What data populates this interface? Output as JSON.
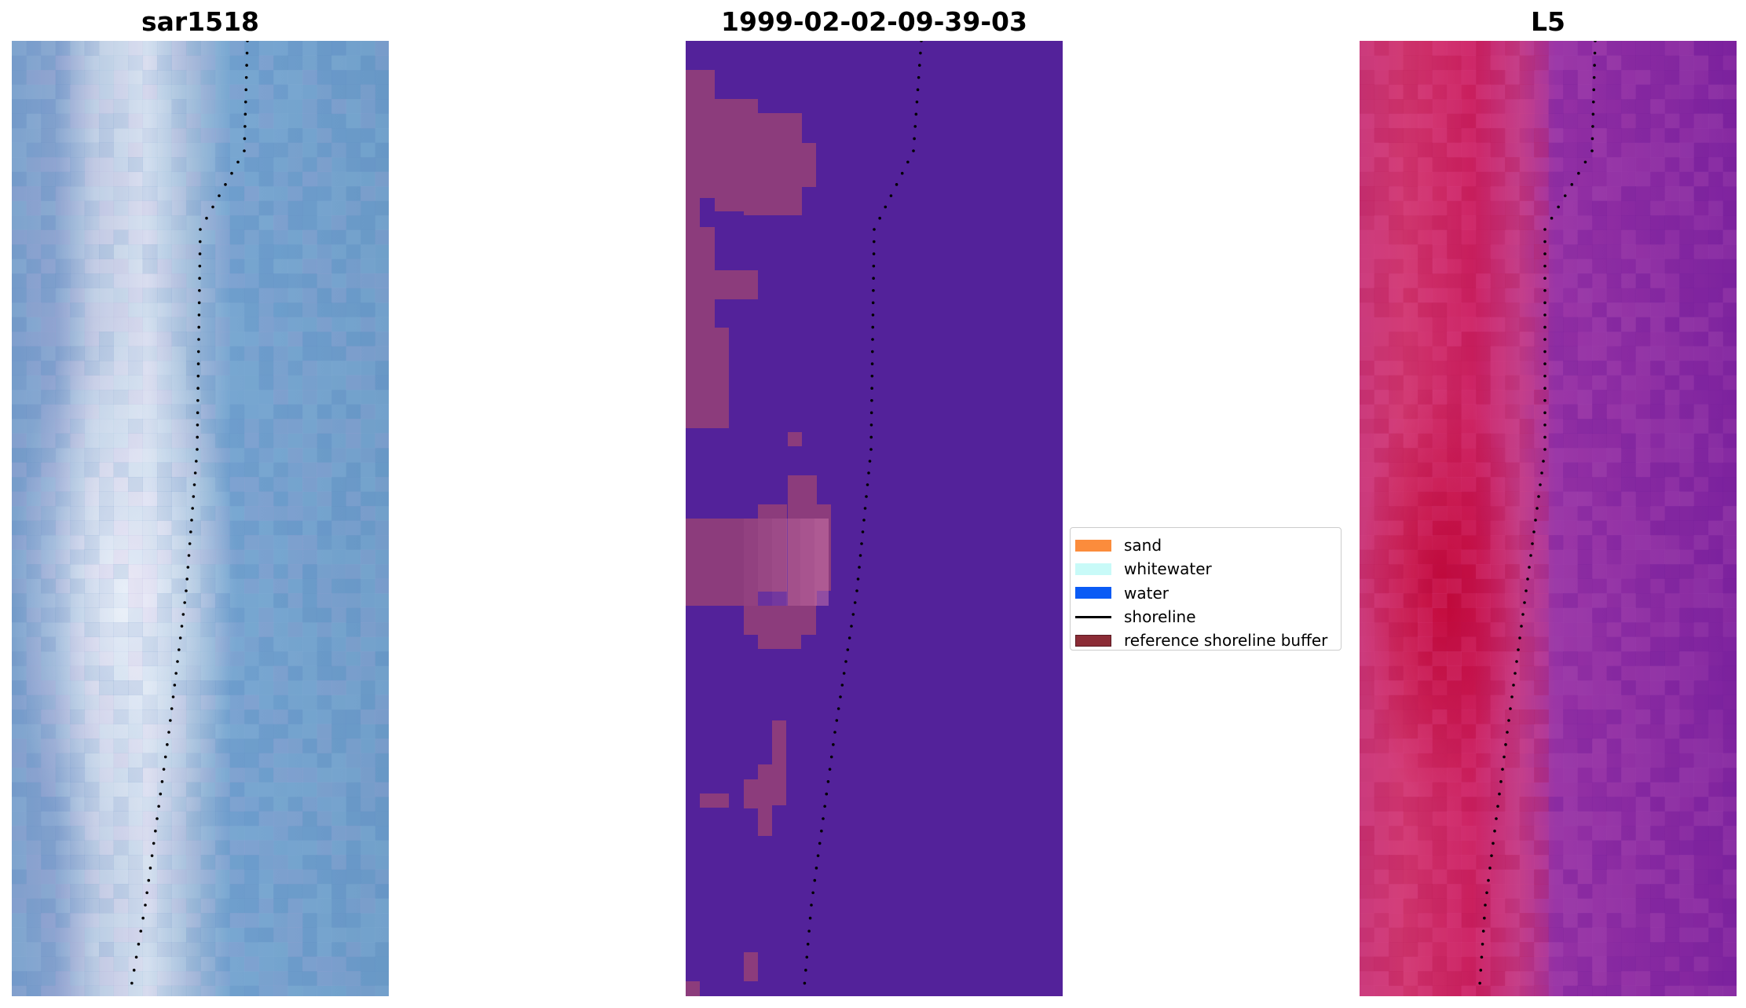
{
  "panels": {
    "left": {
      "title": "sar1518"
    },
    "middle": {
      "title": "1999-02-02-09-39-03"
    },
    "right": {
      "title": "L5"
    }
  },
  "legend": {
    "items": [
      {
        "label": "sand",
        "kind": "patch",
        "color": "#fb8c3c"
      },
      {
        "label": "whitewater",
        "kind": "patch",
        "color": "#c8faf8"
      },
      {
        "label": "water",
        "kind": "patch",
        "color": "#0a5bf5"
      },
      {
        "label": "shoreline",
        "kind": "line",
        "color": "#000000"
      },
      {
        "label": "reference shoreline buffer",
        "kind": "patch",
        "color": "#8b2c36",
        "edge": "#5a1a22"
      }
    ]
  },
  "colors": {
    "left_base": "#6e9ccc",
    "left_bright": "#eef2f8",
    "middle_background": "#53229a",
    "middle_buffer": "#8c3c7c",
    "right_base": "#8a2aa0",
    "right_strip": "#cc2060",
    "shoreline_dots": "#000000"
  }
}
